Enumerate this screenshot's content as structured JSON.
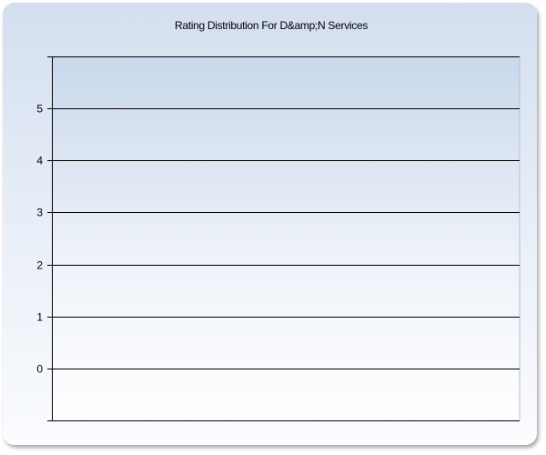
{
  "chart_data": {
    "type": "bar",
    "title": "Rating Distribution For D&amp;N Services",
    "xlabel": "",
    "ylabel": "",
    "categories": [],
    "values": [],
    "ylim": [
      -1,
      6
    ],
    "yticks": [
      "0",
      "1",
      "2",
      "3",
      "4",
      "5"
    ],
    "grid": true,
    "colors": {
      "background_top": "#d3deef",
      "background_bottom": "#fbfcfe",
      "plot_top": "#c9d8ec",
      "grid": "#000000"
    }
  }
}
